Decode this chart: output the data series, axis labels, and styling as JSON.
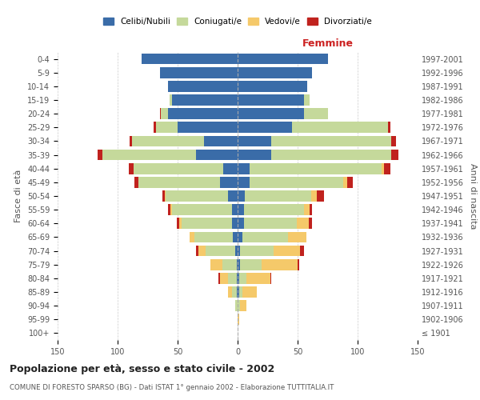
{
  "age_groups": [
    "100+",
    "95-99",
    "90-94",
    "85-89",
    "80-84",
    "75-79",
    "70-74",
    "65-69",
    "60-64",
    "55-59",
    "50-54",
    "45-49",
    "40-44",
    "35-39",
    "30-34",
    "25-29",
    "20-24",
    "15-19",
    "10-14",
    "5-9",
    "0-4"
  ],
  "birth_years": [
    "≤ 1901",
    "1902-1906",
    "1907-1911",
    "1912-1916",
    "1917-1921",
    "1922-1926",
    "1927-1931",
    "1932-1936",
    "1937-1941",
    "1942-1946",
    "1947-1951",
    "1952-1956",
    "1957-1961",
    "1962-1966",
    "1967-1971",
    "1972-1976",
    "1977-1981",
    "1982-1986",
    "1987-1991",
    "1992-1996",
    "1997-2001"
  ],
  "male": {
    "celibe": [
      0,
      0,
      0,
      1,
      1,
      1,
      2,
      4,
      5,
      5,
      8,
      15,
      12,
      35,
      28,
      50,
      58,
      55,
      58,
      65,
      80
    ],
    "coniugato": [
      0,
      0,
      2,
      4,
      7,
      12,
      25,
      32,
      42,
      50,
      52,
      68,
      75,
      78,
      60,
      18,
      6,
      2,
      0,
      0,
      0
    ],
    "vedovo": [
      0,
      0,
      0,
      3,
      7,
      10,
      6,
      4,
      2,
      1,
      1,
      0,
      0,
      0,
      0,
      0,
      0,
      0,
      0,
      0,
      0
    ],
    "divorziato": [
      0,
      0,
      0,
      0,
      1,
      0,
      2,
      0,
      2,
      2,
      2,
      3,
      4,
      4,
      2,
      2,
      1,
      0,
      0,
      0,
      0
    ]
  },
  "female": {
    "nubile": [
      0,
      0,
      0,
      1,
      1,
      2,
      2,
      4,
      5,
      5,
      6,
      10,
      10,
      28,
      28,
      45,
      55,
      55,
      58,
      62,
      75
    ],
    "coniugato": [
      0,
      0,
      2,
      3,
      6,
      18,
      28,
      38,
      44,
      50,
      55,
      78,
      110,
      100,
      100,
      80,
      20,
      5,
      0,
      0,
      0
    ],
    "vedovo": [
      0,
      1,
      5,
      12,
      20,
      30,
      22,
      15,
      10,
      5,
      5,
      3,
      2,
      0,
      0,
      0,
      0,
      0,
      0,
      0,
      0
    ],
    "divorziato": [
      0,
      0,
      0,
      0,
      1,
      1,
      3,
      0,
      3,
      2,
      6,
      5,
      5,
      6,
      4,
      2,
      0,
      0,
      0,
      0,
      0
    ]
  },
  "colors": {
    "celibe": "#3a6ca8",
    "coniugato": "#c5d99b",
    "vedovo": "#f5c96a",
    "divorziato": "#c0221e"
  },
  "title": "Popolazione per età, sesso e stato civile - 2002",
  "subtitle": "COMUNE DI FORESTO SPARSO (BG) - Dati ISTAT 1° gennaio 2002 - Elaborazione TUTTITALIA.IT",
  "xlabel_right": "Femmine",
  "ylabel_left": "Fasce di età",
  "ylabel_right": "Anni di nascita",
  "xlim": 150,
  "bg_color": "#ffffff",
  "grid_color": "#cccccc"
}
